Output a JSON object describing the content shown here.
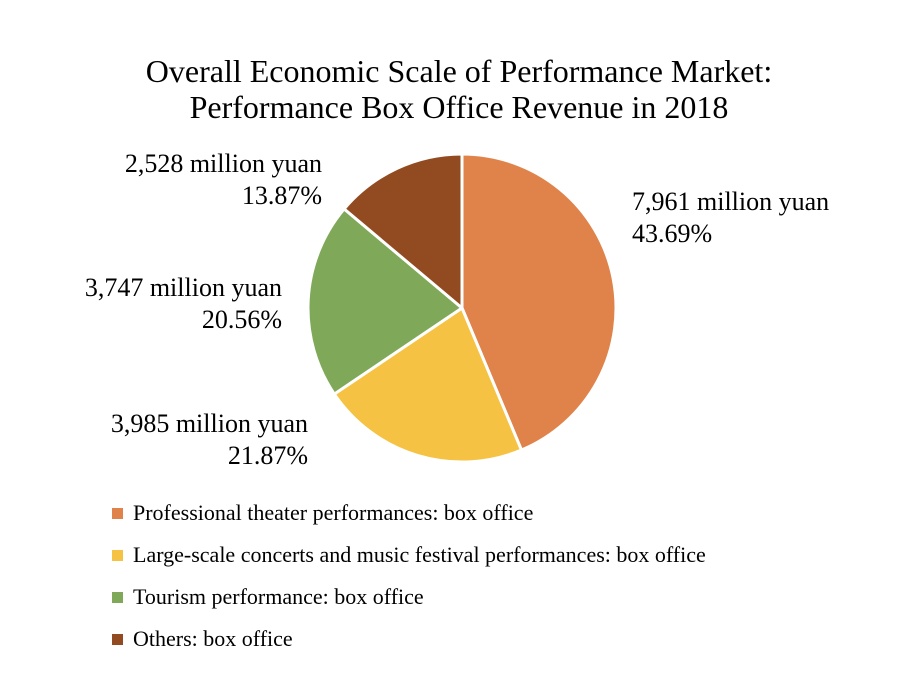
{
  "chart_data": {
    "type": "pie",
    "title": [
      "Overall Economic Scale of Performance Market:",
      "Performance Box Office Revenue in 2018"
    ],
    "slices": [
      {
        "name": "Professional theater performances: box office",
        "value": 7961,
        "value_label": "7,961 million yuan",
        "percent": 43.69,
        "percent_label": "43.69%",
        "color": "#E0834A"
      },
      {
        "name": "Large-scale concerts and music festival performances: box office",
        "value": 3985,
        "value_label": "3,985 million yuan",
        "percent": 21.87,
        "percent_label": "21.87%",
        "color": "#F6C244"
      },
      {
        "name": "Tourism performance: box office",
        "value": 3747,
        "value_label": "3,747 million yuan",
        "percent": 20.56,
        "percent_label": "20.56%",
        "color": "#7FA958"
      },
      {
        "name": "Others: box office",
        "value": 2528,
        "value_label": "2,528 million yuan",
        "percent": 13.87,
        "percent_label": "13.87%",
        "color": "#924B21"
      }
    ],
    "start_angle_deg": 0,
    "direction": "clockwise",
    "legend_position": "bottom"
  }
}
